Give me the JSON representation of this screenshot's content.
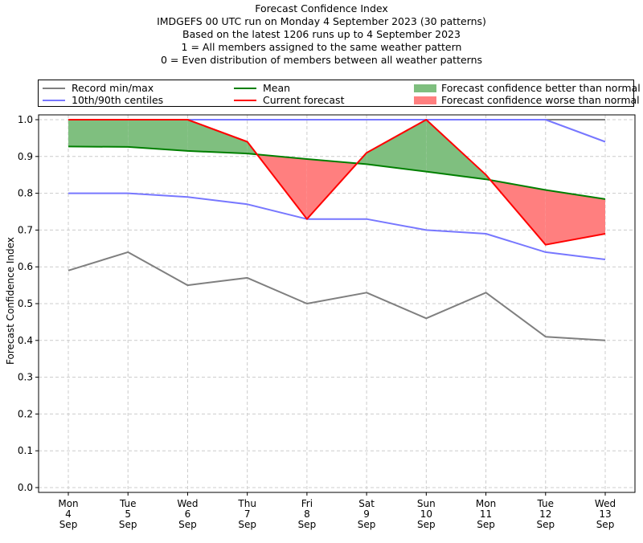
{
  "title_lines": [
    "Forecast Confidence Index",
    "IMDGEFS 00 UTC run on Monday 4 September 2023 (30 patterns)",
    "Based on the latest 1206 runs up to 4 September 2023",
    "1 = All members assigned to the same weather pattern",
    "0 = Even distribution of members between all weather patterns"
  ],
  "legend": {
    "record": "Record min/max",
    "centiles": "10th/90th centiles",
    "mean": "Mean",
    "current": "Current forecast",
    "better": "Forecast confidence better than normal",
    "worse": "Forecast confidence worse than normal"
  },
  "colors": {
    "record": "#7f7f7f",
    "centiles": "#7777ff",
    "centile_top": "#3333cc",
    "mean": "#007f00",
    "current": "#ff0000",
    "better": "#7fbf7f",
    "worse": "#ff7f7f",
    "grid": "#cccccc"
  },
  "chart_data": {
    "type": "line",
    "title": "Forecast Confidence Index",
    "xlabel": "",
    "ylabel": "Forecast Confidence Index",
    "ylim": [
      0.0,
      1.0
    ],
    "yticks": [
      "0.0",
      "0.1",
      "0.2",
      "0.3",
      "0.4",
      "0.5",
      "0.6",
      "0.7",
      "0.8",
      "0.9",
      "1.0"
    ],
    "grid": true,
    "legend_position": "top",
    "categories": [
      [
        "Mon",
        "4",
        "Sep"
      ],
      [
        "Tue",
        "5",
        "Sep"
      ],
      [
        "Wed",
        "6",
        "Sep"
      ],
      [
        "Thu",
        "7",
        "Sep"
      ],
      [
        "Fri",
        "8",
        "Sep"
      ],
      [
        "Sat",
        "9",
        "Sep"
      ],
      [
        "Sun",
        "10",
        "Sep"
      ],
      [
        "Mon",
        "11",
        "Sep"
      ],
      [
        "Tue",
        "12",
        "Sep"
      ],
      [
        "Wed",
        "13",
        "Sep"
      ]
    ],
    "series": [
      {
        "name": "Record max",
        "values": [
          1.0,
          1.0,
          1.0,
          1.0,
          1.0,
          1.0,
          1.0,
          1.0,
          1.0,
          1.0
        ]
      },
      {
        "name": "Record min",
        "values": [
          0.59,
          0.64,
          0.55,
          0.57,
          0.5,
          0.53,
          0.46,
          0.53,
          0.41,
          0.4
        ]
      },
      {
        "name": "90th centile",
        "values": [
          1.0,
          1.0,
          1.0,
          1.0,
          1.0,
          1.0,
          1.0,
          1.0,
          1.0,
          0.94
        ]
      },
      {
        "name": "10th centile",
        "values": [
          0.8,
          0.8,
          0.79,
          0.77,
          0.73,
          0.73,
          0.7,
          0.69,
          0.64,
          0.62
        ]
      },
      {
        "name": "Mean",
        "values": [
          0.927,
          0.926,
          0.915,
          0.908,
          0.893,
          0.879,
          0.859,
          0.838,
          0.809,
          0.784
        ]
      },
      {
        "name": "Current forecast",
        "values": [
          1.0,
          1.0,
          1.0,
          0.94,
          0.73,
          0.91,
          1.0,
          0.85,
          0.66,
          0.69
        ]
      }
    ]
  }
}
